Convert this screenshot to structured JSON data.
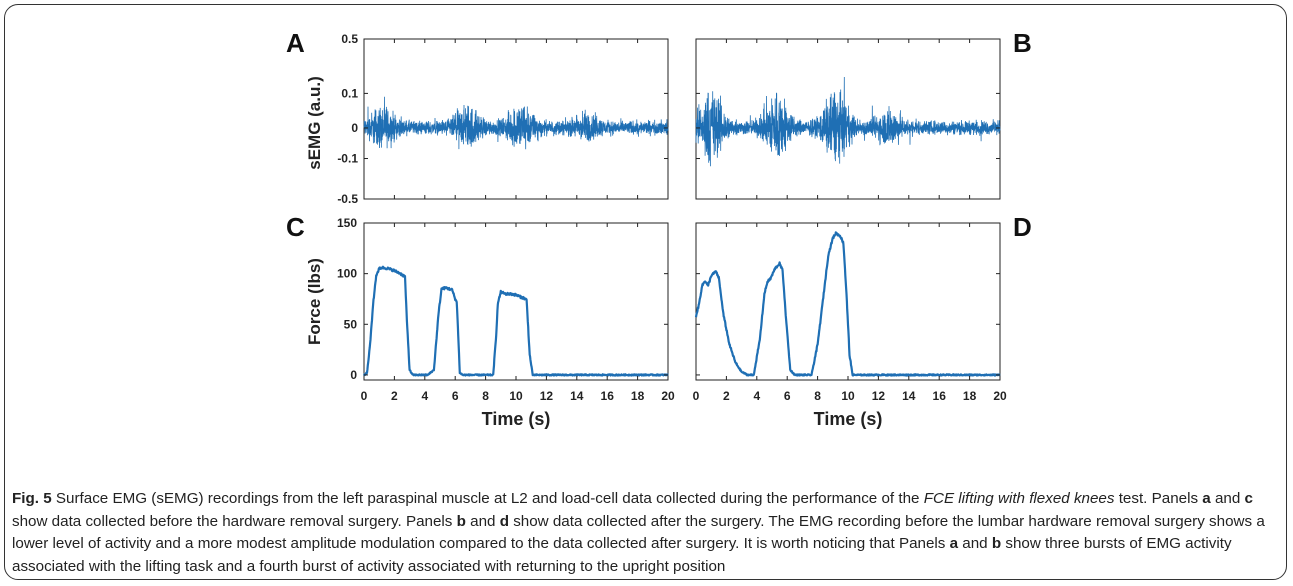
{
  "chart_data": [
    {
      "type": "line",
      "panel": "A",
      "ylabel": "sEMG (a.u.)",
      "yticks": [
        "0.5",
        "0.1",
        "0",
        "-0.1",
        "-0.5"
      ],
      "ylim": [
        -0.5,
        0.5
      ],
      "xlim": [
        0,
        20
      ],
      "color": "#1f6fb4",
      "series": [
        {
          "baseline_amplitude": 0.03,
          "bursts": [
            {
              "center_s": 1.2,
              "amplitude": 0.07
            },
            {
              "center_s": 6.8,
              "amplitude": 0.07
            },
            {
              "center_s": 10.3,
              "amplitude": 0.08
            },
            {
              "center_s": 14.6,
              "amplitude": 0.04
            }
          ]
        }
      ]
    },
    {
      "type": "line",
      "panel": "B",
      "ylim": [
        -0.5,
        0.5
      ],
      "xlim": [
        0,
        20
      ],
      "color": "#1f6fb4",
      "series": [
        {
          "baseline_amplitude": 0.03,
          "bursts": [
            {
              "center_s": 1.0,
              "amplitude": 0.14
            },
            {
              "center_s": 5.3,
              "amplitude": 0.13
            },
            {
              "center_s": 9.2,
              "amplitude": 0.14
            },
            {
              "center_s": 12.7,
              "amplitude": 0.06
            }
          ]
        }
      ]
    },
    {
      "type": "line",
      "panel": "C",
      "ylabel": "Force (lbs)",
      "xlabel": "Time (s)",
      "yticks": [
        0,
        50,
        100,
        150
      ],
      "xticks": [
        0,
        2,
        4,
        6,
        8,
        10,
        12,
        14,
        16,
        18,
        20
      ],
      "ylim": [
        -5,
        150
      ],
      "xlim": [
        0,
        20
      ],
      "color": "#1f6fb4",
      "series": [
        {
          "x": [
            0,
            0.2,
            0.4,
            0.6,
            0.8,
            1.0,
            1.2,
            1.6,
            2.0,
            2.4,
            2.7,
            2.8,
            3.0,
            3.2,
            4.2,
            4.6,
            4.9,
            5.1,
            5.4,
            5.8,
            6.0,
            6.1,
            6.2,
            6.3,
            6.5,
            8.5,
            8.7,
            8.8,
            9.0,
            9.3,
            9.6,
            10.0,
            10.3,
            10.5,
            10.7,
            10.9,
            11.1,
            20
          ],
          "y": [
            0,
            2,
            30,
            70,
            98,
            105,
            106,
            105,
            103,
            100,
            97,
            60,
            5,
            0,
            0,
            5,
            60,
            85,
            86,
            84,
            75,
            72,
            40,
            2,
            0,
            0,
            40,
            70,
            82,
            80,
            80,
            79,
            77,
            76,
            74,
            20,
            0,
            0
          ]
        }
      ]
    },
    {
      "type": "line",
      "panel": "D",
      "xlabel": "Time (s)",
      "xticks": [
        0,
        2,
        4,
        6,
        8,
        10,
        12,
        14,
        16,
        18,
        20
      ],
      "ylim": [
        -5,
        150
      ],
      "xlim": [
        0,
        20
      ],
      "color": "#1f6fb4",
      "series": [
        {
          "x": [
            0,
            0.2,
            0.4,
            0.6,
            0.8,
            1.0,
            1.3,
            1.5,
            1.8,
            2.2,
            2.6,
            3.0,
            3.4,
            3.8,
            4.2,
            4.5,
            4.7,
            4.9,
            5.2,
            5.5,
            5.7,
            5.9,
            6.2,
            6.5,
            7.6,
            8.0,
            8.4,
            8.7,
            9.0,
            9.2,
            9.5,
            9.7,
            9.9,
            10.1,
            10.3,
            20
          ],
          "y": [
            58,
            70,
            88,
            93,
            88,
            98,
            102,
            96,
            60,
            30,
            12,
            3,
            0,
            0,
            35,
            80,
            92,
            95,
            105,
            110,
            103,
            60,
            5,
            0,
            0,
            30,
            80,
            118,
            135,
            140,
            137,
            130,
            80,
            20,
            0,
            0
          ]
        }
      ]
    }
  ],
  "panel_letters": [
    "A",
    "B",
    "C",
    "D"
  ],
  "caption": {
    "fig_label": "Fig. 5",
    "seg1": " Surface EMG (sEMG) recordings from the left paraspinal muscle at L2 and load-cell data collected during the performance of the ",
    "italic": "FCE lifting with flexed knees",
    "seg2": " test. Panels ",
    "a": "a",
    "and1": " and ",
    "c": "c",
    "seg3": " show data collected before the hardware removal surgery. Panels ",
    "b": "b",
    "and2": " and ",
    "d": "d",
    "seg4": " show data collected after the surgery. The EMG recording before the lumbar hardware removal surgery shows a lower level of activity and a more modest amplitude modulation compared to the data collected after surgery. It is worth noticing that Panels ",
    "a2": "a",
    "and3": " and ",
    "b2": "b",
    "seg5": " show three bursts of EMG activity associated with the lifting task and a fourth burst of activity associated with returning to the upright position"
  }
}
